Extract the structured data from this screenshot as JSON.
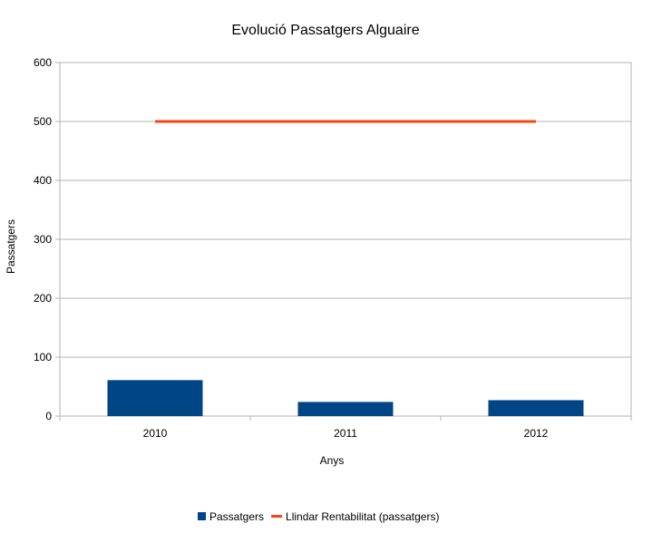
{
  "chart_data": {
    "type": "bar",
    "title": "Evolució Passatgers Alguaire",
    "xlabel": "Anys",
    "ylabel": "Passatgers",
    "categories": [
      "2010",
      "2011",
      "2012"
    ],
    "ylim": [
      0,
      600
    ],
    "yticks": [
      0,
      100,
      200,
      300,
      400,
      500,
      600
    ],
    "grid": true,
    "legend_position": "bottom",
    "series": [
      {
        "name": "Passatgers",
        "kind": "bar",
        "color": "#004586",
        "values": [
          61,
          24,
          27
        ]
      },
      {
        "name": "Llindar Rentabilitat (passatgers)",
        "kind": "line",
        "color": "#ff420e",
        "values": [
          500,
          500,
          500
        ]
      }
    ]
  }
}
